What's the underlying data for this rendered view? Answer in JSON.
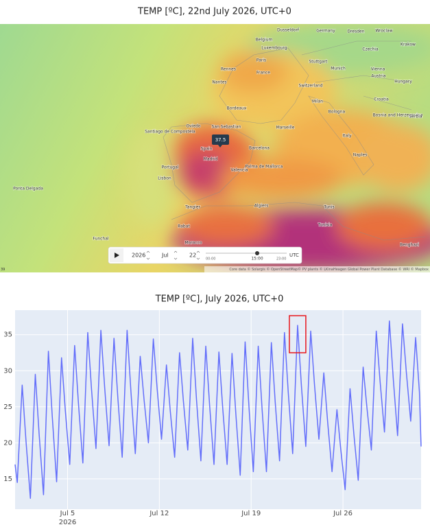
{
  "map": {
    "title": "TEMP [ºC], 22nd July 2026, UTC+0",
    "labels": [
      "Dusseldorf",
      "Germany",
      "Dresden",
      "Wroclaw",
      "Belgium",
      "Luxembourg",
      "Czechia",
      "Krakow",
      "Paris",
      "Stuttgart",
      "Munich",
      "Vienna",
      "France",
      "Rennes",
      "Nantes",
      "Switzerland",
      "Austria",
      "Hungary",
      "Milan",
      "Croatia",
      "Bordeaux",
      "Bologna",
      "Bosnia and Herzegovina",
      "Serbia",
      "Santiago de Compostela",
      "Oviedo",
      "San Sebastian",
      "Marseille",
      "Italy",
      "Barcelona",
      "Spain",
      "Madrid",
      "Naples",
      "Portugal",
      "Valencia",
      "Palma de Mallorca",
      "Lisbon",
      "Ponta Delgada",
      "Tangier",
      "Algiers",
      "Tunis",
      "Rabat",
      "Tunisia",
      "Morocco",
      "Funchal",
      "Benghazi"
    ],
    "tooltip": "37.5",
    "controls": {
      "year": "2026",
      "month": "Jul",
      "day": "22",
      "time_ticks": [
        "00:00",
        "15:00",
        "23:00"
      ],
      "timezone": "UTC"
    },
    "attribution": "Core data © Solargis © OpenStreetMap© PV plants © LKinaHeagen Global Power Plant Database © WRI © Mapbox",
    "scale_label": "39"
  },
  "chart_data": {
    "type": "line",
    "title": "TEMP [ºC], July 2026, UTC+0",
    "color": "#636efa",
    "grid": true,
    "x": [
      "2026-07-01 00:00",
      "2026-07-01 04:00",
      "2026-07-01 13:00",
      "2026-07-01 20:00",
      "2026-07-02 04:00",
      "2026-07-02 13:00",
      "2026-07-02 20:00",
      "2026-07-03 04:00",
      "2026-07-03 13:00",
      "2026-07-03 20:00",
      "2026-07-04 04:00",
      "2026-07-04 13:00",
      "2026-07-04 20:00",
      "2026-07-05 04:00",
      "2026-07-05 13:00",
      "2026-07-05 20:00",
      "2026-07-06 04:00",
      "2026-07-06 13:00",
      "2026-07-06 20:00",
      "2026-07-07 04:00",
      "2026-07-07 13:00",
      "2026-07-07 20:00",
      "2026-07-08 04:00",
      "2026-07-08 13:00",
      "2026-07-08 20:00",
      "2026-07-09 04:00",
      "2026-07-09 13:00",
      "2026-07-09 20:00",
      "2026-07-10 04:00",
      "2026-07-10 13:00",
      "2026-07-10 20:00",
      "2026-07-11 04:00",
      "2026-07-11 13:00",
      "2026-07-11 20:00",
      "2026-07-12 04:00",
      "2026-07-12 13:00",
      "2026-07-12 20:00",
      "2026-07-13 04:00",
      "2026-07-13 13:00",
      "2026-07-13 20:00",
      "2026-07-14 04:00",
      "2026-07-14 13:00",
      "2026-07-14 20:00",
      "2026-07-15 04:00",
      "2026-07-15 13:00",
      "2026-07-15 20:00",
      "2026-07-16 04:00",
      "2026-07-16 13:00",
      "2026-07-16 20:00",
      "2026-07-17 04:00",
      "2026-07-17 13:00",
      "2026-07-17 20:00",
      "2026-07-18 04:00",
      "2026-07-18 13:00",
      "2026-07-18 20:00",
      "2026-07-19 04:00",
      "2026-07-19 13:00",
      "2026-07-19 20:00",
      "2026-07-20 04:00",
      "2026-07-20 13:00",
      "2026-07-20 20:00",
      "2026-07-21 04:00",
      "2026-07-21 13:00",
      "2026-07-21 20:00",
      "2026-07-22 04:00",
      "2026-07-22 13:00",
      "2026-07-22 20:00",
      "2026-07-23 04:00",
      "2026-07-23 13:00",
      "2026-07-23 20:00",
      "2026-07-24 04:00",
      "2026-07-24 13:00",
      "2026-07-24 20:00",
      "2026-07-25 04:00",
      "2026-07-25 13:00",
      "2026-07-25 20:00",
      "2026-07-26 04:00",
      "2026-07-26 13:00",
      "2026-07-26 20:00",
      "2026-07-27 04:00",
      "2026-07-27 13:00",
      "2026-07-27 20:00",
      "2026-07-28 04:00",
      "2026-07-28 13:00",
      "2026-07-28 20:00",
      "2026-07-29 04:00",
      "2026-07-29 13:00",
      "2026-07-29 20:00",
      "2026-07-30 04:00",
      "2026-07-30 13:00",
      "2026-07-30 20:00",
      "2026-07-31 04:00",
      "2026-07-31 13:00",
      "2026-07-31 20:00",
      "2026-07-31 23:00"
    ],
    "values": [
      17,
      14.5,
      28,
      20.2,
      12.3,
      29.5,
      21.2,
      12.8,
      32.7,
      23.7,
      14.6,
      31.8,
      24.4,
      17,
      33.5,
      25.4,
      17.2,
      35.3,
      27.3,
      19.2,
      35.6,
      27.6,
      19.6,
      34.5,
      26.3,
      18,
      35.6,
      27.1,
      18.5,
      32,
      26,
      20,
      34.4,
      27.5,
      20.5,
      30.8,
      24.4,
      18,
      32.5,
      25.8,
      19,
      34.5,
      26,
      17.5,
      33.4,
      25.2,
      17,
      32.6,
      24.8,
      17,
      32.4,
      24,
      15.5,
      34,
      25,
      16,
      33.4,
      24.7,
      16,
      33.9,
      25.7,
      17.5,
      35.3,
      26.9,
      18.5,
      36.3,
      27.9,
      19.5,
      35.5,
      28,
      20.5,
      29.7,
      22.9,
      16,
      24.6,
      19.1,
      13.5,
      27.5,
      21.2,
      14.8,
      30.5,
      24.8,
      19,
      35.5,
      28.5,
      21.5,
      36.9,
      29,
      21,
      36.5,
      29.8,
      23,
      34.6,
      27,
      19.5
    ],
    "xlim": [
      "2026-07-01 00:00",
      "2026-07-31 23:00"
    ],
    "xticks": [
      {
        "value": "2026-07-05 00:00",
        "label": "Jul 5"
      },
      {
        "value": "2026-07-12 00:00",
        "label": "Jul 12"
      },
      {
        "value": "2026-07-19 00:00",
        "label": "Jul 19"
      },
      {
        "value": "2026-07-26 00:00",
        "label": "Jul 26"
      }
    ],
    "x_year_label": "2026",
    "ylim": [
      10.8,
      38.4
    ],
    "yticks": [
      15,
      20,
      25,
      30,
      35
    ],
    "highlight_x": "2026-07-22 13:00",
    "highlight_color": "#e8141a"
  }
}
